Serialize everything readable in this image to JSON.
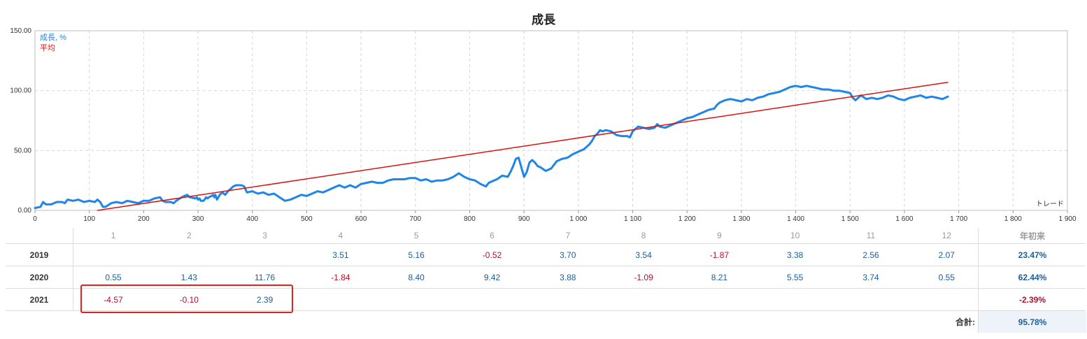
{
  "chart_data": {
    "type": "line",
    "title": "成長",
    "xlabel": "トレード",
    "xlim": [
      0,
      1900
    ],
    "ylim": [
      0,
      150
    ],
    "x_ticks": [
      "0",
      "100",
      "200",
      "300",
      "400",
      "500",
      "600",
      "700",
      "800",
      "900",
      "1 000",
      "1 100",
      "1 200",
      "1 300",
      "1 400",
      "1 500",
      "1 600",
      "1 700",
      "1 800",
      "1 900"
    ],
    "y_ticks": [
      "0.00",
      "50.00",
      "100.00",
      "150.00"
    ],
    "legend_position": "top-left",
    "grid": true,
    "series": [
      {
        "name": "成長, %",
        "color": "#1e86e8",
        "points": [
          [
            0,
            2
          ],
          [
            10,
            3
          ],
          [
            15,
            7
          ],
          [
            20,
            5
          ],
          [
            30,
            5
          ],
          [
            40,
            7
          ],
          [
            50,
            7
          ],
          [
            55,
            6
          ],
          [
            60,
            9
          ],
          [
            70,
            8
          ],
          [
            80,
            9
          ],
          [
            90,
            7
          ],
          [
            100,
            8
          ],
          [
            110,
            7
          ],
          [
            115,
            9
          ],
          [
            120,
            7
          ],
          [
            125,
            3
          ],
          [
            130,
            3
          ],
          [
            140,
            6
          ],
          [
            150,
            7
          ],
          [
            160,
            6
          ],
          [
            170,
            8
          ],
          [
            180,
            7
          ],
          [
            190,
            6
          ],
          [
            200,
            8
          ],
          [
            210,
            8
          ],
          [
            220,
            10
          ],
          [
            230,
            11
          ],
          [
            235,
            8
          ],
          [
            240,
            7
          ],
          [
            250,
            7
          ],
          [
            255,
            6
          ],
          [
            260,
            8
          ],
          [
            270,
            11
          ],
          [
            275,
            12
          ],
          [
            280,
            13
          ],
          [
            285,
            11
          ],
          [
            295,
            10
          ],
          [
            298,
            11
          ],
          [
            300,
            9
          ],
          [
            303,
            10
          ],
          [
            305,
            8
          ],
          [
            310,
            8
          ],
          [
            312,
            9
          ],
          [
            315,
            11
          ],
          [
            318,
            10
          ],
          [
            320,
            11
          ],
          [
            325,
            12
          ],
          [
            328,
            13
          ],
          [
            330,
            11
          ],
          [
            332,
            13
          ],
          [
            335,
            9
          ],
          [
            340,
            13
          ],
          [
            345,
            15
          ],
          [
            350,
            13
          ],
          [
            355,
            16
          ],
          [
            360,
            18
          ],
          [
            365,
            20
          ],
          [
            370,
            21
          ],
          [
            380,
            21
          ],
          [
            385,
            20
          ],
          [
            390,
            15
          ],
          [
            400,
            16
          ],
          [
            410,
            14
          ],
          [
            420,
            15
          ],
          [
            430,
            13
          ],
          [
            440,
            14
          ],
          [
            450,
            11
          ],
          [
            460,
            8
          ],
          [
            470,
            9
          ],
          [
            480,
            11
          ],
          [
            490,
            13
          ],
          [
            500,
            12
          ],
          [
            510,
            14
          ],
          [
            520,
            16
          ],
          [
            530,
            15
          ],
          [
            540,
            17
          ],
          [
            550,
            19
          ],
          [
            560,
            21
          ],
          [
            570,
            19
          ],
          [
            580,
            21
          ],
          [
            590,
            19
          ],
          [
            600,
            22
          ],
          [
            610,
            23
          ],
          [
            620,
            24
          ],
          [
            630,
            23
          ],
          [
            640,
            23
          ],
          [
            650,
            25
          ],
          [
            660,
            26
          ],
          [
            670,
            26
          ],
          [
            680,
            26
          ],
          [
            690,
            27
          ],
          [
            700,
            27
          ],
          [
            710,
            25
          ],
          [
            720,
            26
          ],
          [
            730,
            24
          ],
          [
            740,
            25
          ],
          [
            750,
            25
          ],
          [
            760,
            26
          ],
          [
            770,
            28
          ],
          [
            780,
            31
          ],
          [
            790,
            28
          ],
          [
            800,
            26
          ],
          [
            810,
            25
          ],
          [
            820,
            22
          ],
          [
            830,
            20
          ],
          [
            835,
            23
          ],
          [
            840,
            24
          ],
          [
            850,
            26
          ],
          [
            860,
            29
          ],
          [
            870,
            28
          ],
          [
            875,
            32
          ],
          [
            880,
            37
          ],
          [
            885,
            43
          ],
          [
            890,
            44
          ],
          [
            895,
            36
          ],
          [
            900,
            28
          ],
          [
            905,
            32
          ],
          [
            910,
            40
          ],
          [
            915,
            42
          ],
          [
            920,
            40
          ],
          [
            925,
            37
          ],
          [
            930,
            36
          ],
          [
            940,
            33
          ],
          [
            950,
            35
          ],
          [
            960,
            41
          ],
          [
            970,
            43
          ],
          [
            980,
            44
          ],
          [
            990,
            47
          ],
          [
            1000,
            49
          ],
          [
            1010,
            51
          ],
          [
            1020,
            55
          ],
          [
            1025,
            58
          ],
          [
            1030,
            62
          ],
          [
            1035,
            64
          ],
          [
            1040,
            67
          ],
          [
            1045,
            66
          ],
          [
            1050,
            67
          ],
          [
            1060,
            66
          ],
          [
            1070,
            63
          ],
          [
            1080,
            62
          ],
          [
            1090,
            62
          ],
          [
            1095,
            61
          ],
          [
            1100,
            66
          ],
          [
            1110,
            70
          ],
          [
            1120,
            69
          ],
          [
            1130,
            68
          ],
          [
            1140,
            69
          ],
          [
            1145,
            72
          ],
          [
            1150,
            70
          ],
          [
            1160,
            69
          ],
          [
            1170,
            71
          ],
          [
            1180,
            73
          ],
          [
            1190,
            75
          ],
          [
            1200,
            77
          ],
          [
            1210,
            78
          ],
          [
            1220,
            80
          ],
          [
            1230,
            82
          ],
          [
            1240,
            84
          ],
          [
            1250,
            85
          ],
          [
            1255,
            88
          ],
          [
            1260,
            90
          ],
          [
            1270,
            92
          ],
          [
            1280,
            93
          ],
          [
            1290,
            92
          ],
          [
            1300,
            91
          ],
          [
            1310,
            93
          ],
          [
            1320,
            92
          ],
          [
            1330,
            94
          ],
          [
            1340,
            95
          ],
          [
            1350,
            97
          ],
          [
            1360,
            98
          ],
          [
            1370,
            99
          ],
          [
            1380,
            101
          ],
          [
            1390,
            103
          ],
          [
            1400,
            104
          ],
          [
            1410,
            103
          ],
          [
            1420,
            104
          ],
          [
            1430,
            103
          ],
          [
            1440,
            102
          ],
          [
            1450,
            101
          ],
          [
            1460,
            101
          ],
          [
            1470,
            100
          ],
          [
            1480,
            100
          ],
          [
            1490,
            99
          ],
          [
            1500,
            98
          ],
          [
            1505,
            94
          ],
          [
            1510,
            92
          ],
          [
            1520,
            96
          ],
          [
            1530,
            93
          ],
          [
            1540,
            94
          ],
          [
            1550,
            93
          ],
          [
            1560,
            94
          ],
          [
            1570,
            96
          ],
          [
            1580,
            95
          ],
          [
            1590,
            93
          ],
          [
            1600,
            92
          ],
          [
            1610,
            94
          ],
          [
            1620,
            95
          ],
          [
            1630,
            96
          ],
          [
            1640,
            94
          ],
          [
            1650,
            95
          ],
          [
            1660,
            94
          ],
          [
            1670,
            93
          ],
          [
            1680,
            95
          ]
        ]
      },
      {
        "name": "平均",
        "color": "#dd1111",
        "points": [
          [
            115,
            0
          ],
          [
            1680,
            107
          ]
        ]
      }
    ]
  },
  "returns_table": {
    "month_headers": [
      "1",
      "2",
      "3",
      "4",
      "5",
      "6",
      "7",
      "8",
      "9",
      "10",
      "11",
      "12"
    ],
    "ytd_header": "年初来",
    "rows": [
      {
        "year": "2019",
        "months": [
          "",
          "",
          "",
          "3.51",
          "5.16",
          "-0.52",
          "3.70",
          "3.54",
          "-1.87",
          "3.38",
          "2.56",
          "2.07"
        ],
        "ytd": "23.47%"
      },
      {
        "year": "2020",
        "months": [
          "0.55",
          "1.43",
          "11.76",
          "-1.84",
          "8.40",
          "9.42",
          "3.88",
          "-1.09",
          "8.21",
          "5.55",
          "3.74",
          "0.55"
        ],
        "ytd": "62.44%"
      },
      {
        "year": "2021",
        "months": [
          "-4.57",
          "-0.10",
          "2.39",
          "",
          "",
          "",
          "",
          "",
          "",
          "",
          "",
          ""
        ],
        "ytd": "-2.39%"
      }
    ],
    "total_label": "合計:",
    "total_value": "95.78%"
  }
}
